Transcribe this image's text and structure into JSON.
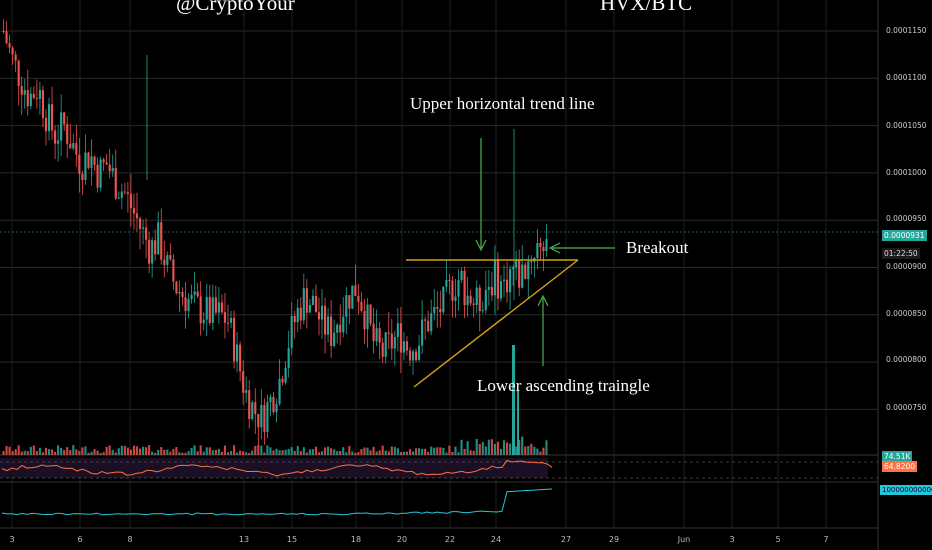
{
  "header": {
    "author_handle": "@CryptoYour",
    "symbol": "HVX/BTC"
  },
  "annotations": {
    "upper_line": "Upper horizontal trend line",
    "breakout": "Breakout",
    "lower_triangle": "Lower ascending traingle"
  },
  "price_axis": {
    "ticks": [
      "0.0001150",
      "0.0001100",
      "0.0001050",
      "0.0001000",
      "0.0000950",
      "0.0000900",
      "0.0000850",
      "0.0000800",
      "0.0000750"
    ],
    "current_price": "0.0000931",
    "countdown": "01:22:50"
  },
  "indicators": {
    "volume_label": "74.51K",
    "rsi_label": "64.8200",
    "obv_label": "1000000000000"
  },
  "time_axis": {
    "ticks": [
      "3",
      "6",
      "8",
      "13",
      "15",
      "18",
      "20",
      "22",
      "24",
      "27",
      "29",
      "Jun",
      "3",
      "5",
      "7"
    ]
  },
  "colors": {
    "up": "#26a69a",
    "down": "#ef5350",
    "trendline": "#d4a017",
    "arrow": "#4caf50",
    "rsi": "#ff7043",
    "obv": "#26c6da"
  },
  "chart_data": {
    "type": "candlestick",
    "symbol": "HVX/BTC",
    "ylim": [
      7.15e-05,
      0.0001175
    ],
    "closes": [
      0.000115,
      0.000112,
      0.00011,
      0.000108,
      0.000109,
      0.000106,
      0.000104,
      0.000105,
      0.000103,
      0.000101,
      0.000102,
      0.0001,
      0.000101,
      9.9e-05,
      9.8e-05,
      9.6e-05,
      9.4e-05,
      9.2e-05,
      9.3e-05,
      9e-05,
      8.8e-05,
      8.7e-05,
      8.6e-05,
      8.55e-05,
      8.5e-05,
      8.5e-05,
      8.45e-05,
      8.1e-05,
      7.7e-05,
      7.5e-05,
      7.4e-05,
      7.6e-05,
      7.8e-05,
      8.2e-05,
      8.5e-05,
      8.7e-05,
      8.6e-05,
      8.4e-05,
      8.3e-05,
      8.5e-05,
      8.7e-05,
      8.8e-05,
      8.5e-05,
      8.2e-05,
      8.1e-05,
      8.2e-05,
      8.3e-05,
      8.15e-05,
      8.2e-05,
      8.4e-05,
      8.5e-05,
      8.6e-05,
      8.8e-05,
      8.9e-05,
      8.7e-05,
      8.6e-05,
      8.8e-05,
      8.9e-05,
      8.8e-05,
      9e-05,
      8.9e-05,
      9.1e-05,
      9.25e-05,
      9.31e-05
    ]
  }
}
